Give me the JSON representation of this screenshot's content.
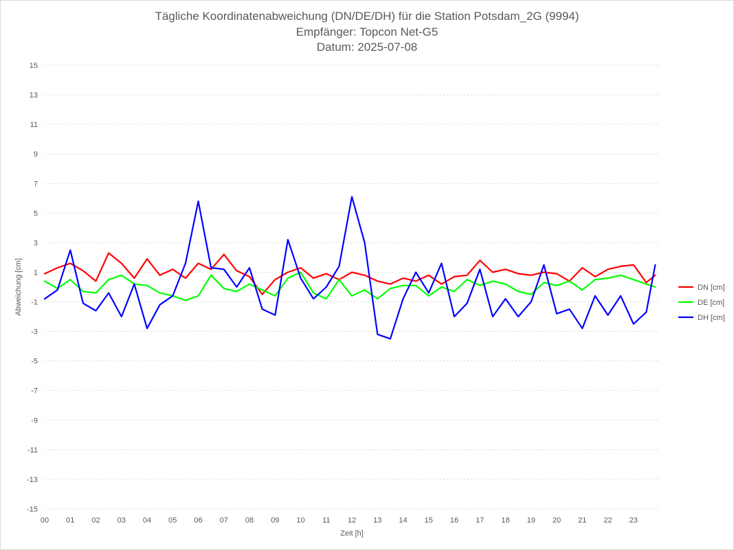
{
  "chart_data": {
    "type": "line",
    "title": [
      "Tägliche Koordinatenabweichung (DN/DE/DH) für die Station Potsdam_2G (9994)",
      "Empfänger: Topcon Net-G5",
      "Datum: 2025-07-08"
    ],
    "xlabel": "Zeit [h]",
    "ylabel": "Abweichung [cm]",
    "x_ticks": [
      "00",
      "01",
      "02",
      "03",
      "04",
      "05",
      "06",
      "07",
      "08",
      "09",
      "10",
      "11",
      "12",
      "13",
      "14",
      "15",
      "16",
      "17",
      "18",
      "19",
      "20",
      "21",
      "22",
      "23"
    ],
    "y_ticks": [
      15,
      13,
      11,
      9,
      7,
      5,
      3,
      1,
      -1,
      -3,
      -5,
      -7,
      -9,
      -11,
      -13,
      -15
    ],
    "xlim": [
      0,
      24
    ],
    "ylim": [
      -15,
      15
    ],
    "grid": true,
    "legend_position": "right",
    "x": [
      0.0,
      0.5,
      1.0,
      1.5,
      2.0,
      2.5,
      3.0,
      3.5,
      4.0,
      4.5,
      5.0,
      5.5,
      6.0,
      6.5,
      7.0,
      7.5,
      8.0,
      8.5,
      9.0,
      9.5,
      10.0,
      10.5,
      11.0,
      11.5,
      12.0,
      12.5,
      13.0,
      13.5,
      14.0,
      14.5,
      15.0,
      15.5,
      16.0,
      16.5,
      17.0,
      17.5,
      18.0,
      18.5,
      19.0,
      19.5,
      20.0,
      20.5,
      21.0,
      21.5,
      22.0,
      22.5,
      23.0,
      23.5,
      23.85
    ],
    "series": [
      {
        "name": "DN [cm]",
        "color": "#ff0000",
        "values": [
          0.9,
          1.3,
          1.6,
          1.1,
          0.4,
          2.3,
          1.6,
          0.6,
          1.9,
          0.8,
          1.2,
          0.6,
          1.6,
          1.2,
          2.2,
          1.1,
          0.7,
          -0.5,
          0.5,
          1.0,
          1.3,
          0.6,
          0.9,
          0.5,
          1.0,
          0.8,
          0.4,
          0.2,
          0.6,
          0.4,
          0.8,
          0.2,
          0.7,
          0.8,
          1.8,
          1.0,
          1.2,
          0.9,
          0.8,
          1.0,
          0.9,
          0.4,
          1.3,
          0.7,
          1.2,
          1.4,
          1.5,
          0.3,
          0.8
        ]
      },
      {
        "name": "DE [cm]",
        "color": "#00ff00",
        "values": [
          0.4,
          -0.1,
          0.5,
          -0.3,
          -0.4,
          0.5,
          0.8,
          0.2,
          0.1,
          -0.4,
          -0.6,
          -0.9,
          -0.6,
          0.8,
          -0.1,
          -0.3,
          0.2,
          -0.2,
          -0.6,
          0.6,
          1.0,
          -0.4,
          -0.8,
          0.5,
          -0.6,
          -0.2,
          -0.8,
          -0.1,
          0.1,
          0.1,
          -0.6,
          0.0,
          -0.3,
          0.5,
          0.1,
          0.4,
          0.2,
          -0.3,
          -0.5,
          0.3,
          0.1,
          0.4,
          -0.2,
          0.5,
          0.6,
          0.8,
          0.5,
          0.2,
          0.0
        ]
      },
      {
        "name": "DH [cm]",
        "color": "#0000ff",
        "values": [
          -0.8,
          -0.2,
          2.5,
          -1.1,
          -1.6,
          -0.4,
          -2.0,
          0.2,
          -2.8,
          -1.2,
          -0.6,
          1.6,
          5.8,
          1.3,
          1.2,
          0.0,
          1.3,
          -1.5,
          -1.9,
          3.2,
          0.6,
          -0.8,
          0.0,
          1.4,
          6.1,
          3.0,
          -3.2,
          -3.5,
          -0.8,
          1.0,
          -0.4,
          1.6,
          -2.0,
          -1.1,
          1.2,
          -2.0,
          -0.8,
          -2.0,
          -1.0,
          1.5,
          -1.8,
          -1.5,
          -2.8,
          -0.6,
          -1.9,
          -0.6,
          -2.5,
          -1.7,
          1.5
        ]
      }
    ]
  }
}
